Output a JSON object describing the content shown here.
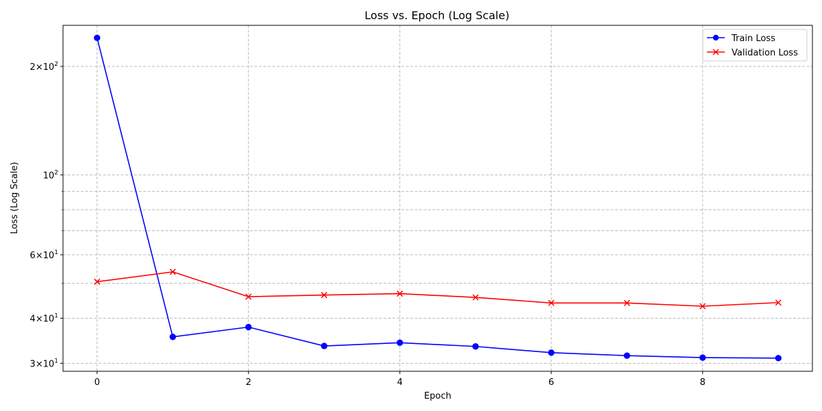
{
  "chart_data": {
    "type": "line",
    "title": "Loss vs. Epoch (Log Scale)",
    "xlabel": "Epoch",
    "ylabel": "Loss (Log Scale)",
    "y_scale": "log",
    "xlim": [
      -0.45,
      9.45
    ],
    "ylim": [
      28.5,
      260
    ],
    "grid": true,
    "legend_position": "top-right",
    "x_ticks": [
      0,
      2,
      4,
      6,
      8
    ],
    "x_tick_labels": [
      "0",
      "2",
      "4",
      "6",
      "8"
    ],
    "y_major_ticks": [
      {
        "value": 30,
        "base": "3",
        "exp": "10",
        "pow": "1"
      },
      {
        "value": 40,
        "base": "4",
        "exp": "10",
        "pow": "1"
      },
      {
        "value": 60,
        "base": "6",
        "exp": "10",
        "pow": "1"
      },
      {
        "value": 100,
        "base": "",
        "exp": "10",
        "pow": "2"
      },
      {
        "value": 200,
        "base": "2",
        "exp": "10",
        "pow": "2"
      }
    ],
    "y_minor_gridlines": [
      50,
      70,
      80,
      90
    ],
    "x": [
      0,
      1,
      2,
      3,
      4,
      5,
      6,
      7,
      8,
      9
    ],
    "series": [
      {
        "name": "Train Loss",
        "color": "#0000ff",
        "marker": "circle",
        "values": [
          240,
          35.5,
          37.8,
          33.5,
          34.2,
          33.4,
          32.1,
          31.5,
          31.1,
          31.0
        ]
      },
      {
        "name": "Validation Loss",
        "color": "#ff0000",
        "marker": "x",
        "values": [
          50.5,
          53.8,
          45.9,
          46.4,
          46.8,
          45.7,
          44.1,
          44.1,
          43.2,
          44.2
        ]
      }
    ]
  }
}
